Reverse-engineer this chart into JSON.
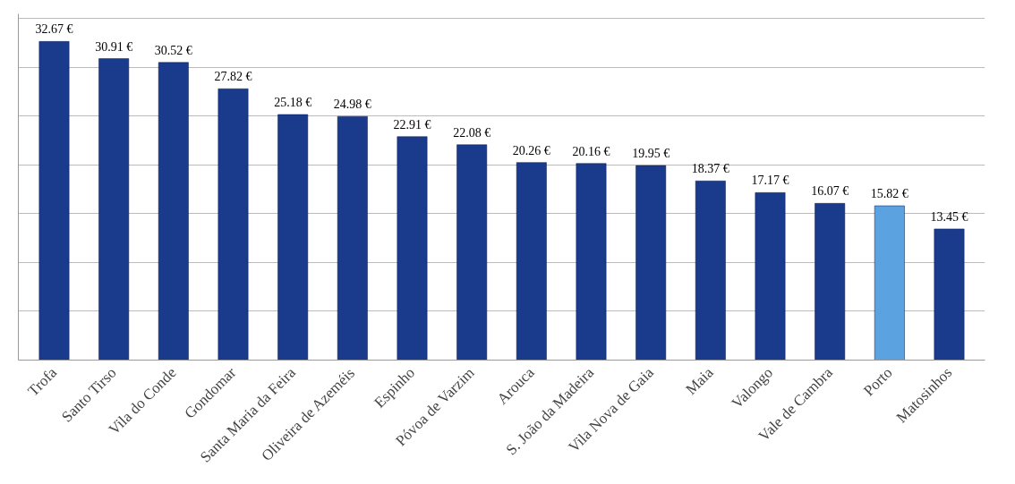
{
  "chart_data": {
    "type": "bar",
    "categories": [
      "Trofa",
      "Santo Tirso",
      "Vila do Conde",
      "Gondomar",
      "Santa Maria da Feira",
      "Oliveira de Azeméis",
      "Espinho",
      "Póvoa de Varzim",
      "Arouca",
      "S. João da Madeira",
      "Vila Nova de Gaia",
      "Maia",
      "Valongo",
      "Vale de Cambra",
      "Porto",
      "Matosinhos"
    ],
    "values": [
      32.67,
      30.91,
      30.52,
      27.82,
      25.18,
      24.98,
      22.91,
      22.08,
      20.26,
      20.16,
      19.95,
      18.37,
      17.17,
      16.07,
      15.82,
      13.45
    ],
    "value_labels": [
      "32.67 €",
      "30.91 €",
      "30.52 €",
      "27.82 €",
      "25.18 €",
      "24.98 €",
      "22.91 €",
      "22.08 €",
      "20.26 €",
      "20.16 €",
      "19.95 €",
      "18.37 €",
      "17.17 €",
      "16.07 €",
      "15.82 €",
      "13.45 €"
    ],
    "colors": [
      "#1a3a8c",
      "#1a3a8c",
      "#1a3a8c",
      "#1a3a8c",
      "#1a3a8c",
      "#1a3a8c",
      "#1a3a8c",
      "#1a3a8c",
      "#1a3a8c",
      "#1a3a8c",
      "#1a3a8c",
      "#1a3a8c",
      "#1a3a8c",
      "#1a3a8c",
      "#5ba3e0",
      "#1a3a8c"
    ],
    "ylim": [
      0,
      35.5
    ],
    "yticks": [
      {
        "value": 0,
        "label": null
      },
      {
        "value": 5,
        "label": null
      },
      {
        "value": 10,
        "label": null
      },
      {
        "value": 15,
        "label": null
      },
      {
        "value": 20,
        "label": null
      },
      {
        "value": 25,
        "label": null
      },
      {
        "value": 30,
        "label": null
      },
      {
        "value": 35,
        "label": null
      }
    ],
    "grid": "y",
    "tick_labels": "x"
  }
}
